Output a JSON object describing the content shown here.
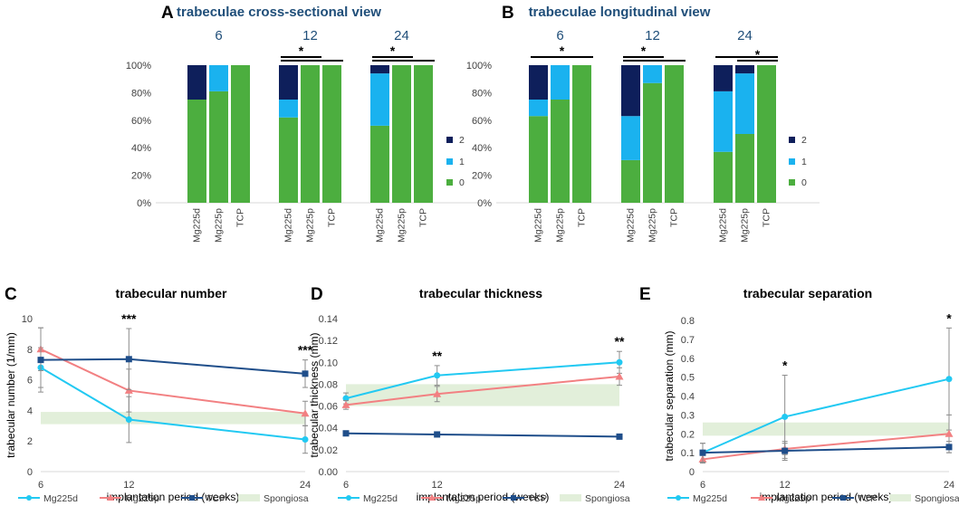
{
  "colors": {
    "level2": "#0e1f5b",
    "level1": "#1ab2ef",
    "level0": "#4cae3f",
    "Mg225d": "#22c9f2",
    "Mg225p": "#f28082",
    "TCP": "#1f4e8a",
    "Spongiosa": "#e2efda"
  },
  "chart_data": [
    {
      "type": "bar",
      "stacked": true,
      "panel": "A",
      "title": "trabeculae cross-sectional view",
      "groups": [
        {
          "label": "6",
          "significance": []
        },
        {
          "label": "12",
          "significance": [
            {
              "from": 0,
              "to": 1,
              "label": "*"
            },
            {
              "from": 0,
              "to": 2,
              "label": ""
            }
          ]
        },
        {
          "label": "24",
          "significance": [
            {
              "from": 0,
              "to": 1,
              "label": "*"
            },
            {
              "from": 0,
              "to": 2,
              "label": ""
            }
          ]
        }
      ],
      "categories": [
        "Mg225d",
        "Mg225p",
        "TCP"
      ],
      "series": [
        {
          "name": "0",
          "values": [
            [
              75,
              81,
              100
            ],
            [
              62,
              100,
              100
            ],
            [
              56,
              100,
              100
            ]
          ]
        },
        {
          "name": "1",
          "values": [
            [
              0,
              19,
              0
            ],
            [
              13,
              0,
              0
            ],
            [
              38,
              0,
              0
            ]
          ]
        },
        {
          "name": "2",
          "values": [
            [
              25,
              0,
              0
            ],
            [
              25,
              0,
              0
            ],
            [
              6,
              0,
              0
            ]
          ]
        }
      ],
      "yticks": [
        "0%",
        "20%",
        "40%",
        "60%",
        "80%",
        "100%"
      ],
      "legend": [
        "2",
        "1",
        "0"
      ]
    },
    {
      "type": "bar",
      "stacked": true,
      "panel": "B",
      "title": "trabeculae longitudinal view",
      "groups": [
        {
          "label": "6",
          "significance": [
            {
              "from": 0,
              "to": 2,
              "label": "*"
            }
          ]
        },
        {
          "label": "12",
          "significance": [
            {
              "from": 0,
              "to": 1,
              "label": "*"
            },
            {
              "from": 0,
              "to": 2,
              "label": ""
            }
          ]
        },
        {
          "label": "24",
          "significance": [
            {
              "from": 0,
              "to": 2,
              "label": ""
            },
            {
              "from": 1,
              "to": 2,
              "label": "*"
            }
          ]
        }
      ],
      "categories": [
        "Mg225d",
        "Mg225p",
        "TCP"
      ],
      "series": [
        {
          "name": "0",
          "values": [
            [
              63,
              75,
              100
            ],
            [
              31,
              87,
              100
            ],
            [
              37,
              50,
              100
            ]
          ]
        },
        {
          "name": "1",
          "values": [
            [
              12,
              25,
              0
            ],
            [
              32,
              13,
              0
            ],
            [
              44,
              44,
              0
            ]
          ]
        },
        {
          "name": "2",
          "values": [
            [
              25,
              0,
              0
            ],
            [
              37,
              0,
              0
            ],
            [
              19,
              6,
              0
            ]
          ]
        }
      ],
      "yticks": [
        "0%",
        "20%",
        "40%",
        "60%",
        "80%",
        "100%"
      ],
      "legend": [
        "2",
        "1",
        "0"
      ]
    },
    {
      "type": "line",
      "panel": "C",
      "title": "trabecular number",
      "xlabel": "implantation period (weeks)",
      "ylabel": "trabecular number (1/mm)",
      "x": [
        6,
        12,
        24
      ],
      "xticks": [
        "6",
        "12",
        "24"
      ],
      "ylim": [
        0,
        10
      ],
      "yticks": [
        "0",
        "2",
        "4",
        "6",
        "8",
        "10"
      ],
      "band": {
        "name": "Spongiosa",
        "range": [
          3.1,
          3.9
        ]
      },
      "series": [
        {
          "name": "Mg225d",
          "marker": "circle",
          "values": [
            6.8,
            3.4,
            2.1
          ],
          "err": [
            1.3,
            1.5,
            0.9
          ]
        },
        {
          "name": "Mg225p",
          "marker": "triangle",
          "values": [
            8.0,
            5.3,
            3.8
          ],
          "err": [
            1.4,
            1.4,
            0.8
          ]
        },
        {
          "name": "TCP",
          "marker": "square",
          "values": [
            7.3,
            7.35,
            6.4
          ],
          "err": [
            2.1,
            2.0,
            0.9
          ]
        }
      ],
      "annotations": [
        {
          "x": 12,
          "label": "***"
        },
        {
          "x": 24,
          "label": "***"
        }
      ],
      "legend": [
        "Mg225d",
        "Mg225p",
        "TCP",
        "Spongiosa"
      ]
    },
    {
      "type": "line",
      "panel": "D",
      "title": "trabecular thickness",
      "xlabel": "implantation period (weeks)",
      "ylabel": "trabecular thickness (mm)",
      "x": [
        6,
        12,
        24
      ],
      "xticks": [
        "6",
        "12",
        "24"
      ],
      "ylim": [
        0,
        0.14
      ],
      "yticks": [
        "0.00",
        "0.02",
        "0.04",
        "0.06",
        "0.08",
        "0.10",
        "0.12",
        "0.14"
      ],
      "band": {
        "name": "Spongiosa",
        "range": [
          0.06,
          0.08
        ]
      },
      "series": [
        {
          "name": "Mg225d",
          "marker": "circle",
          "values": [
            0.067,
            0.088,
            0.1
          ],
          "err": [
            0.005,
            0.009,
            0.01
          ]
        },
        {
          "name": "Mg225p",
          "marker": "triangle",
          "values": [
            0.061,
            0.071,
            0.087
          ],
          "err": [
            0.004,
            0.007,
            0.008
          ]
        },
        {
          "name": "TCP",
          "marker": "square",
          "values": [
            0.035,
            0.034,
            0.032
          ],
          "err": [
            0.0,
            0.0,
            0.0
          ]
        }
      ],
      "annotations": [
        {
          "x": 12,
          "label": "**"
        },
        {
          "x": 24,
          "label": "**"
        }
      ],
      "legend": [
        "Mg225d",
        "Mg225p",
        "TCP",
        "Spongiosa"
      ]
    },
    {
      "type": "line",
      "panel": "E",
      "title": "trabecular separation",
      "xlabel": "implantation period (weeks)",
      "ylabel": "trabecular separation (mm)",
      "x": [
        6,
        12,
        24
      ],
      "xticks": [
        "6",
        "12",
        "24"
      ],
      "ylim": [
        0,
        0.8
      ],
      "yticks": [
        "0",
        "0.1",
        "0.2",
        "0.3",
        "0.4",
        "0.5",
        "0.6",
        "0.7",
        "0.8"
      ],
      "band": {
        "name": "Spongiosa",
        "range": [
          0.19,
          0.26
        ]
      },
      "series": [
        {
          "name": "Mg225d",
          "marker": "circle",
          "values": [
            0.1,
            0.29,
            0.49
          ],
          "err": [
            0.05,
            0.22,
            0.27
          ]
        },
        {
          "name": "Mg225p",
          "marker": "triangle",
          "values": [
            0.065,
            0.12,
            0.2
          ],
          "err": [
            0.02,
            0.03,
            0.1
          ]
        },
        {
          "name": "TCP",
          "marker": "square",
          "values": [
            0.1,
            0.11,
            0.13
          ],
          "err": [
            0.05,
            0.05,
            0.03
          ]
        }
      ],
      "annotations": [
        {
          "x": 12,
          "label": "*"
        },
        {
          "x": 24,
          "label": "*"
        }
      ],
      "legend": [
        "Mg225d",
        "Mg225p",
        "TCP",
        "Spongiosa"
      ]
    }
  ]
}
